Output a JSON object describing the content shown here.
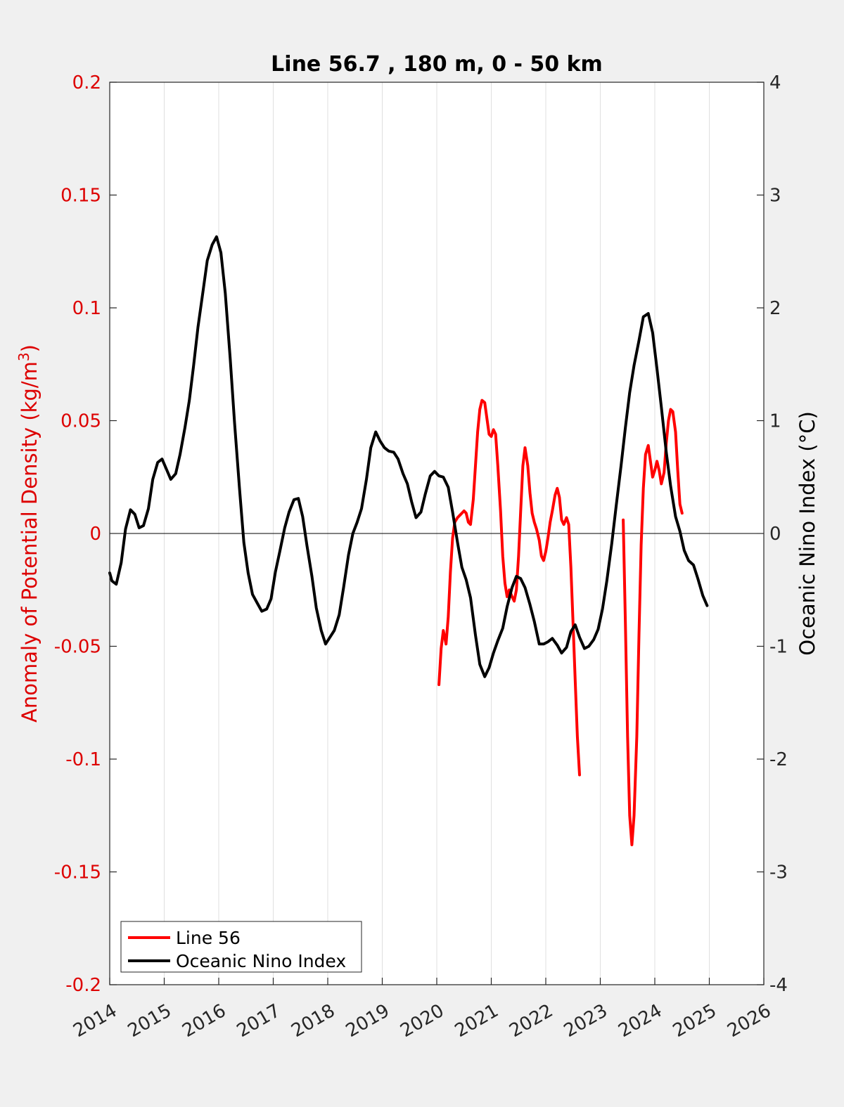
{
  "chart_data": {
    "type": "line",
    "title": "Line 56.7 , 180 m, 0 - 50 km",
    "ylabel_left": "Anomaly of Potential Density (kg/m",
    "ylabel_left_sup": "3",
    "ylabel_left_close": ")",
    "ylabel_right": "Oceanic Nino Index (°C)",
    "xlim": [
      2014,
      2026
    ],
    "ylim_left": [
      -0.2,
      0.2
    ],
    "ylim_right": [
      -4,
      4
    ],
    "x_ticks": [
      "2014",
      "2015",
      "2016",
      "2017",
      "2018",
      "2019",
      "2020",
      "2021",
      "2022",
      "2023",
      "2024",
      "2025",
      "2026"
    ],
    "y_ticks_left": [
      "0.2",
      "0.15",
      "0.1",
      "0.05",
      "0",
      "-0.05",
      "-0.1",
      "-0.15",
      "-0.2"
    ],
    "y_ticks_right": [
      "4",
      "3",
      "2",
      "1",
      "0",
      "-1",
      "-2",
      "-3",
      "-4"
    ],
    "grid": "vertical",
    "legend_position": "bottom-left",
    "colors": {
      "line56": "#ff0000",
      "oni": "#000000",
      "left_axis": "#dd0000"
    },
    "series": [
      {
        "name": "Line 56",
        "axis": "left",
        "segments": [
          [
            [
              2020.04,
              -0.067
            ],
            [
              2020.08,
              -0.051
            ],
            [
              2020.12,
              -0.043
            ],
            [
              2020.17,
              -0.049
            ],
            [
              2020.21,
              -0.037
            ],
            [
              2020.25,
              -0.017
            ],
            [
              2020.29,
              -0.002
            ],
            [
              2020.33,
              0.005
            ],
            [
              2020.38,
              0.007
            ],
            [
              2020.42,
              0.008
            ],
            [
              2020.46,
              0.009
            ],
            [
              2020.5,
              0.01
            ],
            [
              2020.54,
              0.009
            ],
            [
              2020.58,
              0.005
            ],
            [
              2020.62,
              0.004
            ],
            [
              2020.67,
              0.015
            ],
            [
              2020.71,
              0.03
            ],
            [
              2020.75,
              0.045
            ],
            [
              2020.79,
              0.055
            ],
            [
              2020.83,
              0.059
            ],
            [
              2020.88,
              0.058
            ],
            [
              2020.92,
              0.051
            ],
            [
              2020.96,
              0.044
            ],
            [
              2021.0,
              0.043
            ],
            [
              2021.04,
              0.046
            ],
            [
              2021.08,
              0.044
            ],
            [
              2021.12,
              0.03
            ],
            [
              2021.17,
              0.01
            ],
            [
              2021.21,
              -0.01
            ],
            [
              2021.25,
              -0.022
            ],
            [
              2021.29,
              -0.028
            ],
            [
              2021.33,
              -0.025
            ],
            [
              2021.38,
              -0.028
            ],
            [
              2021.42,
              -0.03
            ],
            [
              2021.46,
              -0.025
            ],
            [
              2021.5,
              -0.01
            ],
            [
              2021.54,
              0.01
            ],
            [
              2021.58,
              0.03
            ],
            [
              2021.62,
              0.038
            ],
            [
              2021.67,
              0.03
            ],
            [
              2021.71,
              0.018
            ],
            [
              2021.75,
              0.009
            ],
            [
              2021.79,
              0.005
            ],
            [
              2021.83,
              0.002
            ],
            [
              2021.88,
              -0.003
            ],
            [
              2021.92,
              -0.01
            ],
            [
              2021.96,
              -0.012
            ],
            [
              2022.0,
              -0.008
            ],
            [
              2022.04,
              -0.002
            ],
            [
              2022.08,
              0.005
            ],
            [
              2022.12,
              0.01
            ],
            [
              2022.17,
              0.017
            ],
            [
              2022.21,
              0.02
            ],
            [
              2022.25,
              0.016
            ],
            [
              2022.29,
              0.006
            ],
            [
              2022.33,
              0.004
            ],
            [
              2022.38,
              0.007
            ],
            [
              2022.42,
              0.004
            ],
            [
              2022.46,
              -0.015
            ],
            [
              2022.5,
              -0.04
            ],
            [
              2022.54,
              -0.065
            ],
            [
              2022.58,
              -0.09
            ],
            [
              2022.62,
              -0.107
            ]
          ],
          [
            [
              2023.42,
              0.006
            ],
            [
              2023.46,
              -0.04
            ],
            [
              2023.5,
              -0.09
            ],
            [
              2023.54,
              -0.125
            ],
            [
              2023.58,
              -0.138
            ],
            [
              2023.62,
              -0.125
            ],
            [
              2023.67,
              -0.09
            ],
            [
              2023.71,
              -0.045
            ],
            [
              2023.75,
              -0.005
            ],
            [
              2023.79,
              0.02
            ],
            [
              2023.83,
              0.035
            ],
            [
              2023.88,
              0.039
            ],
            [
              2023.92,
              0.032
            ],
            [
              2023.96,
              0.025
            ],
            [
              2024.0,
              0.028
            ],
            [
              2024.04,
              0.032
            ],
            [
              2024.08,
              0.028
            ],
            [
              2024.12,
              0.022
            ],
            [
              2024.17,
              0.027
            ],
            [
              2024.21,
              0.04
            ],
            [
              2024.25,
              0.05
            ],
            [
              2024.29,
              0.055
            ],
            [
              2024.33,
              0.054
            ],
            [
              2024.38,
              0.045
            ],
            [
              2024.42,
              0.028
            ],
            [
              2024.46,
              0.013
            ],
            [
              2024.5,
              0.009
            ]
          ]
        ]
      },
      {
        "name": "Oceanic Nino Index",
        "axis": "right",
        "segments": [
          [
            [
              2014.0,
              -0.35
            ],
            [
              2014.04,
              -0.42
            ],
            [
              2014.12,
              -0.45
            ],
            [
              2014.21,
              -0.26
            ],
            [
              2014.29,
              0.04
            ],
            [
              2014.38,
              0.21
            ],
            [
              2014.46,
              0.17
            ],
            [
              2014.54,
              0.05
            ],
            [
              2014.62,
              0.07
            ],
            [
              2014.71,
              0.22
            ],
            [
              2014.79,
              0.48
            ],
            [
              2014.88,
              0.63
            ],
            [
              2014.96,
              0.66
            ],
            [
              2015.04,
              0.57
            ],
            [
              2015.12,
              0.48
            ],
            [
              2015.21,
              0.53
            ],
            [
              2015.29,
              0.7
            ],
            [
              2015.38,
              0.94
            ],
            [
              2015.46,
              1.18
            ],
            [
              2015.54,
              1.49
            ],
            [
              2015.62,
              1.83
            ],
            [
              2015.71,
              2.14
            ],
            [
              2015.79,
              2.42
            ],
            [
              2015.88,
              2.56
            ],
            [
              2015.96,
              2.63
            ],
            [
              2016.04,
              2.49
            ],
            [
              2016.12,
              2.13
            ],
            [
              2016.21,
              1.55
            ],
            [
              2016.29,
              0.98
            ],
            [
              2016.38,
              0.4
            ],
            [
              2016.46,
              -0.08
            ],
            [
              2016.54,
              -0.35
            ],
            [
              2016.62,
              -0.54
            ],
            [
              2016.71,
              -0.62
            ],
            [
              2016.79,
              -0.69
            ],
            [
              2016.88,
              -0.67
            ],
            [
              2016.96,
              -0.58
            ],
            [
              2017.04,
              -0.34
            ],
            [
              2017.12,
              -0.16
            ],
            [
              2017.21,
              0.05
            ],
            [
              2017.29,
              0.19
            ],
            [
              2017.38,
              0.3
            ],
            [
              2017.46,
              0.31
            ],
            [
              2017.54,
              0.15
            ],
            [
              2017.62,
              -0.11
            ],
            [
              2017.71,
              -0.38
            ],
            [
              2017.79,
              -0.66
            ],
            [
              2017.88,
              -0.86
            ],
            [
              2017.96,
              -0.98
            ],
            [
              2018.04,
              -0.92
            ],
            [
              2018.12,
              -0.86
            ],
            [
              2018.21,
              -0.72
            ],
            [
              2018.29,
              -0.48
            ],
            [
              2018.38,
              -0.19
            ],
            [
              2018.46,
              0.0
            ],
            [
              2018.54,
              0.1
            ],
            [
              2018.62,
              0.22
            ],
            [
              2018.71,
              0.48
            ],
            [
              2018.79,
              0.76
            ],
            [
              2018.88,
              0.9
            ],
            [
              2018.96,
              0.82
            ],
            [
              2019.04,
              0.76
            ],
            [
              2019.12,
              0.73
            ],
            [
              2019.21,
              0.72
            ],
            [
              2019.29,
              0.66
            ],
            [
              2019.38,
              0.53
            ],
            [
              2019.46,
              0.44
            ],
            [
              2019.54,
              0.28
            ],
            [
              2019.62,
              0.14
            ],
            [
              2019.71,
              0.19
            ],
            [
              2019.79,
              0.35
            ],
            [
              2019.88,
              0.51
            ],
            [
              2019.96,
              0.55
            ],
            [
              2020.04,
              0.51
            ],
            [
              2020.12,
              0.5
            ],
            [
              2020.21,
              0.41
            ],
            [
              2020.29,
              0.19
            ],
            [
              2020.38,
              -0.08
            ],
            [
              2020.46,
              -0.3
            ],
            [
              2020.54,
              -0.41
            ],
            [
              2020.62,
              -0.57
            ],
            [
              2020.71,
              -0.9
            ],
            [
              2020.79,
              -1.16
            ],
            [
              2020.88,
              -1.27
            ],
            [
              2020.96,
              -1.19
            ],
            [
              2021.04,
              -1.06
            ],
            [
              2021.12,
              -0.95
            ],
            [
              2021.21,
              -0.84
            ],
            [
              2021.29,
              -0.65
            ],
            [
              2021.38,
              -0.48
            ],
            [
              2021.46,
              -0.38
            ],
            [
              2021.54,
              -0.4
            ],
            [
              2021.62,
              -0.48
            ],
            [
              2021.71,
              -0.63
            ],
            [
              2021.79,
              -0.78
            ],
            [
              2021.88,
              -0.98
            ],
            [
              2021.96,
              -0.98
            ],
            [
              2022.04,
              -0.96
            ],
            [
              2022.12,
              -0.93
            ],
            [
              2022.21,
              -0.99
            ],
            [
              2022.29,
              -1.06
            ],
            [
              2022.38,
              -1.01
            ],
            [
              2022.46,
              -0.87
            ],
            [
              2022.54,
              -0.81
            ],
            [
              2022.62,
              -0.92
            ],
            [
              2022.71,
              -1.02
            ],
            [
              2022.79,
              -1.0
            ],
            [
              2022.88,
              -0.94
            ],
            [
              2022.96,
              -0.85
            ],
            [
              2023.04,
              -0.67
            ],
            [
              2023.12,
              -0.42
            ],
            [
              2023.21,
              -0.09
            ],
            [
              2023.29,
              0.24
            ],
            [
              2023.38,
              0.6
            ],
            [
              2023.46,
              0.94
            ],
            [
              2023.54,
              1.25
            ],
            [
              2023.62,
              1.49
            ],
            [
              2023.71,
              1.71
            ],
            [
              2023.79,
              1.92
            ],
            [
              2023.88,
              1.95
            ],
            [
              2023.96,
              1.78
            ],
            [
              2024.04,
              1.46
            ],
            [
              2024.12,
              1.12
            ],
            [
              2024.21,
              0.72
            ],
            [
              2024.29,
              0.42
            ],
            [
              2024.38,
              0.15
            ],
            [
              2024.46,
              0.02
            ],
            [
              2024.54,
              -0.15
            ],
            [
              2024.62,
              -0.24
            ],
            [
              2024.71,
              -0.28
            ],
            [
              2024.79,
              -0.4
            ],
            [
              2024.88,
              -0.55
            ],
            [
              2024.96,
              -0.64
            ]
          ]
        ]
      }
    ]
  }
}
